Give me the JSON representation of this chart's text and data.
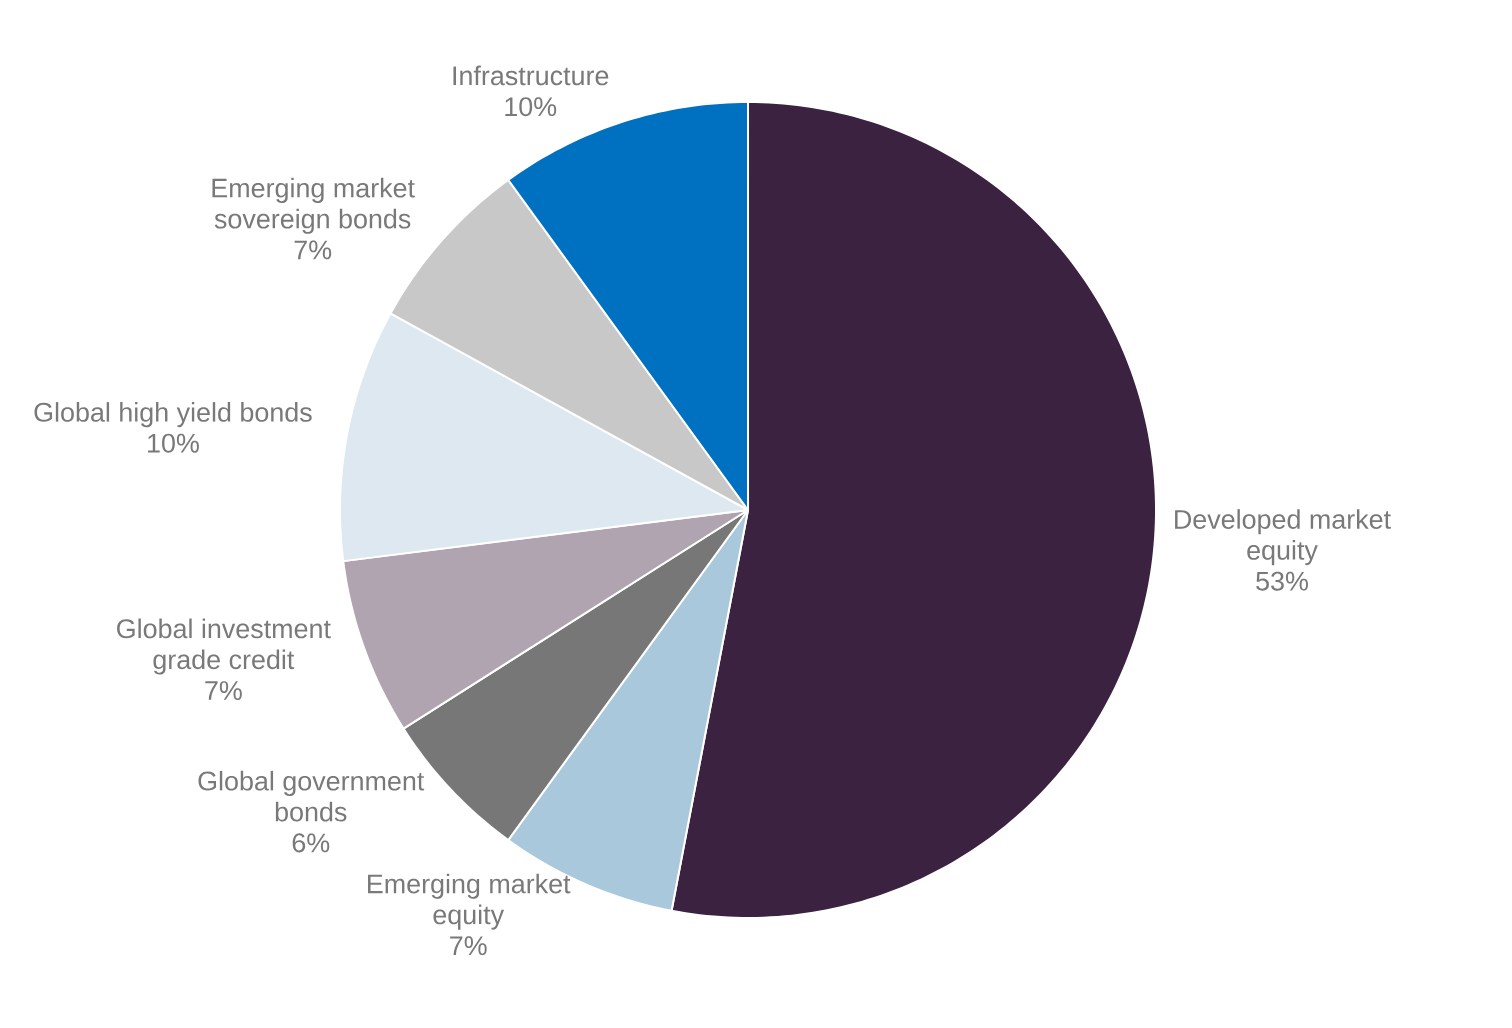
{
  "chart_data": {
    "type": "pie",
    "categories": [
      "Developed market equity",
      "Emerging market equity",
      "Global government bonds",
      "Global investment grade credit",
      "Global high yield bonds",
      "Emerging market sovereign bonds",
      "Infrastructure"
    ],
    "values": [
      53,
      7,
      6,
      7,
      10,
      7,
      10
    ],
    "colors": [
      "#3b2240",
      "#a9c8dc",
      "#777777",
      "#b0a4b0",
      "#dde8f0",
      "#c8c8c8",
      "#0070c0"
    ],
    "value_labels": [
      "53%",
      "7%",
      "6%",
      "7%",
      "10%",
      "7%",
      "10%"
    ]
  }
}
